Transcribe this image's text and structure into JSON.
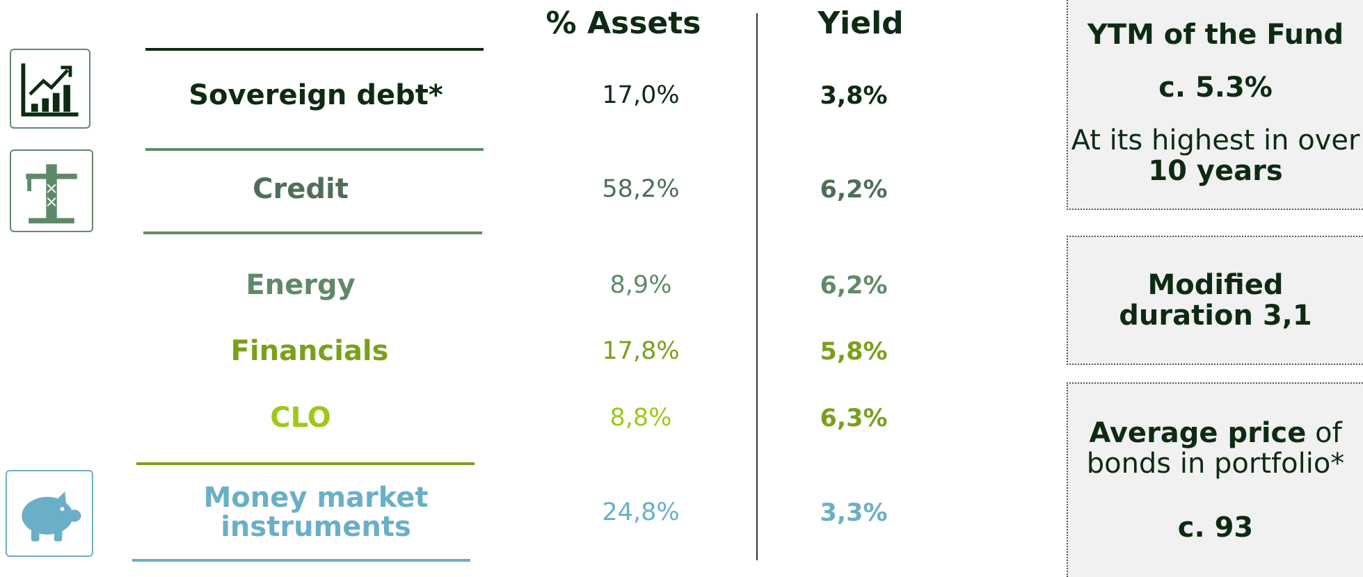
{
  "columns": [
    "% Assets",
    "Yield"
  ],
  "rows": [
    {
      "label": "Sovereign debt*",
      "assets": "17,0%",
      "yield": "3,8%",
      "color": "#0d2b12"
    },
    {
      "label": "Credit",
      "assets": "58,2%",
      "yield": "6,2%",
      "color": "#4f6e58"
    },
    {
      "label": "Energy",
      "assets": "8,9%",
      "yield": "6,2%",
      "color": "#5f8a6a"
    },
    {
      "label": "Financials",
      "assets": "17,8%",
      "yield": "5,8%",
      "color": "#7aa01a"
    },
    {
      "label": "CLO",
      "assets": "8,8%",
      "yield": "6,3%",
      "color": "#9dc81a"
    },
    {
      "label": "Money market instruments",
      "assets": "24,8%",
      "yield": "3,3%",
      "color": "#6aafc8"
    }
  ],
  "boxes": [
    [
      [
        {
          "text": "YTM of the Fund",
          "bold": true
        }
      ],
      [
        {
          "text": "c. 5.3%",
          "bold": true
        }
      ],
      [
        {
          "text": "At its highest in over ",
          "bold": false
        },
        {
          "text": "10 years",
          "bold": true
        }
      ]
    ],
    [
      [
        {
          "text": "Modified duration 3,1",
          "bold": true
        }
      ]
    ],
    [
      [
        {
          "text": "Average price",
          "bold": true
        },
        {
          "text": " of bonds in portfolio*",
          "bold": false
        }
      ],
      [
        {
          "text": "c. 93",
          "bold": true
        }
      ]
    ]
  ]
}
